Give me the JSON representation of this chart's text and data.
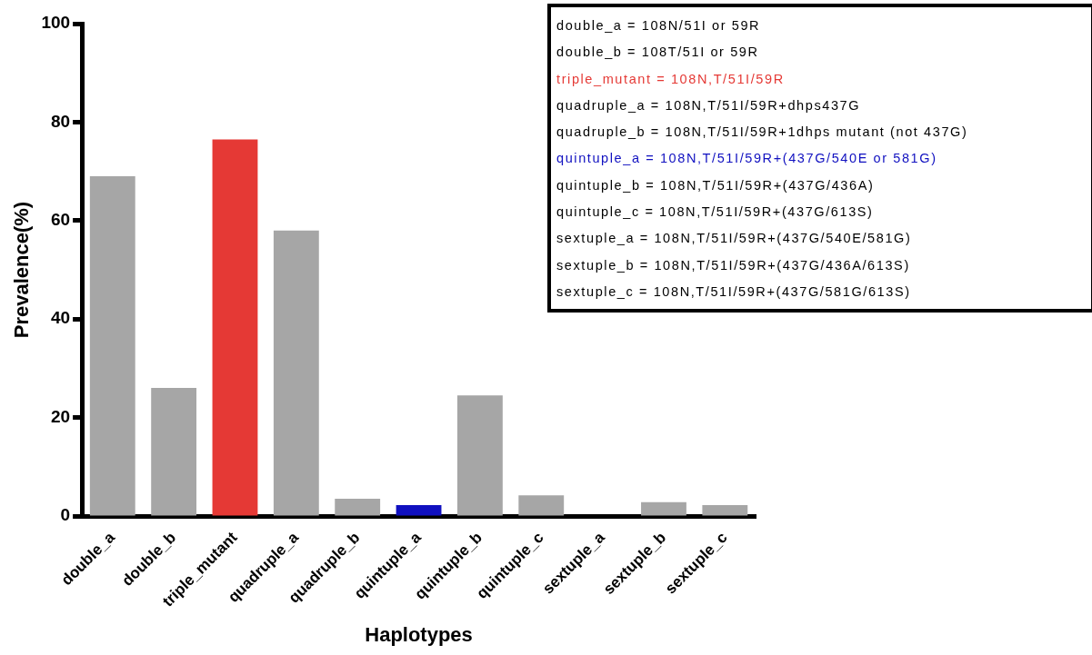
{
  "chart_data": {
    "type": "bar",
    "xlabel": "Haplotypes",
    "ylabel": "Prevalence(%)",
    "categories": [
      "double_a",
      "double_b",
      "triple_mutant",
      "quadruple_a",
      "quadruple_b",
      "quintuple_a",
      "quintuple_b",
      "quintuple_c",
      "sextuple_a",
      "sextuple_b",
      "sextuple_c"
    ],
    "values": [
      69,
      26,
      76.5,
      58,
      3.5,
      2.2,
      24.5,
      4.2,
      0,
      2.8,
      2.2
    ],
    "color": "#a6a6a6",
    "colors": [
      "#a6a6a6",
      "#a6a6a6",
      "#e53935",
      "#a6a6a6",
      "#a6a6a6",
      "#1010c0",
      "#a6a6a6",
      "#a6a6a6",
      "#a6a6a6",
      "#a6a6a6",
      "#a6a6a6"
    ],
    "ylim": [
      0,
      100
    ],
    "yticks": [
      0,
      20,
      40,
      60,
      80,
      100
    ],
    "grid": false,
    "legend": false,
    "annotations": [
      "double_a = 108N/51I or 59R",
      "double_b = 108T/51I or 59R",
      "triple_mutant = 108N,T/51I/59R",
      "quadruple_a = 108N,T/51I/59R+dhps437G",
      "quadruple_b = 108N,T/51I/59R+1dhps mutant (not 437G)",
      "quintuple_a = 108N,T/51I/59R+(437G/540E or 581G)",
      "quintuple_b = 108N,T/51I/59R+(437G/436A)",
      "quintuple_c = 108N,T/51I/59R+(437G/613S)",
      "sextuple_a = 108N,T/51I/59R+(437G/540E/581G)",
      "sextuple_b = 108N,T/51I/59R+(437G/436A/613S)",
      "sextuple_c = 108N,T/51I/59R+(437G/581G/613S)"
    ]
  }
}
